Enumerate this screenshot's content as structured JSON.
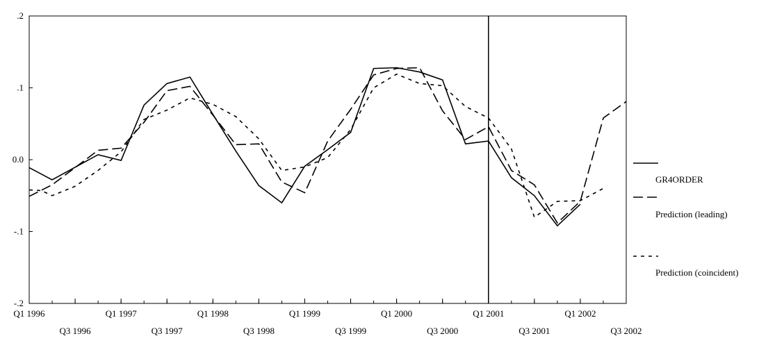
{
  "chart_data": {
    "type": "line",
    "title": "",
    "xlabel": "",
    "ylabel": "",
    "ylim": [
      -0.2,
      0.2
    ],
    "y_ticks": [
      {
        "value": 0.2,
        "label": ".2"
      },
      {
        "value": 0.1,
        "label": ".1"
      },
      {
        "value": 0.0,
        "label": "0.0"
      },
      {
        "value": -0.1,
        "label": "-.1"
      },
      {
        "value": -0.2,
        "label": "-.2"
      }
    ],
    "x_ticks_upper": [
      {
        "q": 0,
        "label": "Q1 1996"
      },
      {
        "q": 4,
        "label": "Q1 1997"
      },
      {
        "q": 8,
        "label": "Q1 1998"
      },
      {
        "q": 12,
        "label": "Q1 1999"
      },
      {
        "q": 16,
        "label": "Q1 2000"
      },
      {
        "q": 20,
        "label": "Q1 2001"
      },
      {
        "q": 24,
        "label": "Q1 2002"
      }
    ],
    "x_ticks_lower": [
      {
        "q": 2,
        "label": "Q3 1996"
      },
      {
        "q": 6,
        "label": "Q3 1997"
      },
      {
        "q": 10,
        "label": "Q3 1998"
      },
      {
        "q": 14,
        "label": "Q3 1999"
      },
      {
        "q": 18,
        "label": "Q3 2000"
      },
      {
        "q": 22,
        "label": "Q3 2001"
      },
      {
        "q": 26,
        "label": "Q3 2002"
      }
    ],
    "xlim_months": [
      0,
      78
    ],
    "vertical_line_q": 20,
    "grid": false,
    "legend_position": "right",
    "series": [
      {
        "name": "GR4ORDER",
        "style": "solid",
        "points": [
          [
            0,
            -0.011
          ],
          [
            3,
            -0.028
          ],
          [
            9,
            0.007
          ],
          [
            12,
            -0.001
          ],
          [
            15,
            0.076
          ],
          [
            18,
            0.106
          ],
          [
            21,
            0.115
          ],
          [
            24,
            0.063
          ],
          [
            27,
            0.012
          ],
          [
            30,
            -0.036
          ],
          [
            33,
            -0.06
          ],
          [
            36,
            -0.009
          ],
          [
            39,
            0.014
          ],
          [
            42,
            0.038
          ],
          [
            45,
            0.127
          ],
          [
            48,
            0.128
          ],
          [
            51,
            0.122
          ],
          [
            54,
            0.111
          ],
          [
            57,
            0.022
          ],
          [
            60,
            0.026
          ],
          [
            63,
            -0.025
          ],
          [
            66,
            -0.05
          ],
          [
            69,
            -0.092
          ],
          [
            72,
            -0.062
          ]
        ]
      },
      {
        "name": "Prediction (leading)",
        "style": "long-dash",
        "points": [
          [
            0,
            -0.051
          ],
          [
            3,
            -0.035
          ],
          [
            9,
            0.013
          ],
          [
            12,
            0.016
          ],
          [
            15,
            0.052
          ],
          [
            18,
            0.096
          ],
          [
            21,
            0.102
          ],
          [
            24,
            0.062
          ],
          [
            27,
            0.021
          ],
          [
            30,
            0.022
          ],
          [
            33,
            -0.031
          ],
          [
            36,
            -0.046
          ],
          [
            39,
            0.026
          ],
          [
            42,
            0.07
          ],
          [
            45,
            0.118
          ],
          [
            48,
            0.127
          ],
          [
            51,
            0.128
          ],
          [
            54,
            0.068
          ],
          [
            57,
            0.028
          ],
          [
            60,
            0.046
          ],
          [
            63,
            -0.015
          ],
          [
            66,
            -0.035
          ],
          [
            69,
            -0.088
          ],
          [
            72,
            -0.058
          ],
          [
            75,
            0.058
          ],
          [
            78,
            0.081
          ]
        ]
      },
      {
        "name": "Prediction (coincident)",
        "style": "short-dash",
        "points": [
          [
            0,
            -0.042
          ],
          [
            1.6,
            -0.043
          ],
          [
            3,
            -0.05
          ],
          [
            6,
            -0.037
          ],
          [
            9,
            -0.015
          ],
          [
            12,
            0.011
          ],
          [
            15,
            0.056
          ],
          [
            18,
            0.069
          ],
          [
            21,
            0.086
          ],
          [
            24,
            0.077
          ],
          [
            27,
            0.06
          ],
          [
            30,
            0.029
          ],
          [
            33,
            -0.015
          ],
          [
            36,
            -0.01
          ],
          [
            39,
            0.003
          ],
          [
            42,
            0.042
          ],
          [
            45,
            0.1
          ],
          [
            48,
            0.119
          ],
          [
            51,
            0.106
          ],
          [
            54,
            0.103
          ],
          [
            57,
            0.074
          ],
          [
            60,
            0.058
          ],
          [
            63,
            0.015
          ],
          [
            66,
            -0.08
          ],
          [
            69,
            -0.058
          ],
          [
            72,
            -0.057
          ],
          [
            75,
            -0.04
          ]
        ]
      }
    ]
  }
}
